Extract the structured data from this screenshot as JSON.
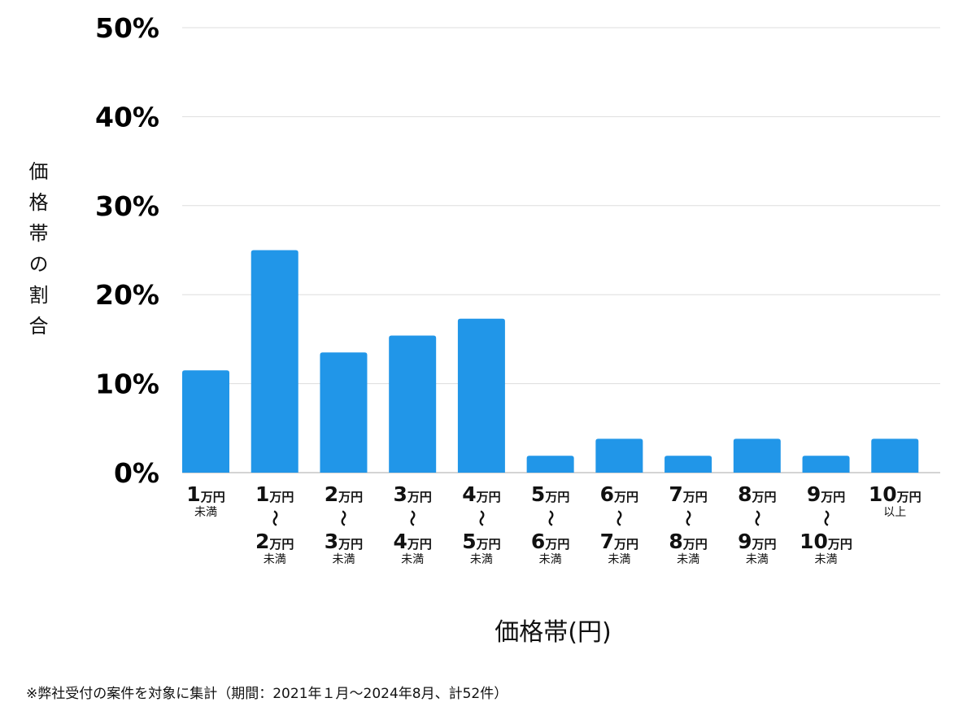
{
  "chart_data": {
    "type": "bar",
    "title": "",
    "xlabel": "価格帯(円)",
    "ylabel": "価格帯の割合",
    "ylim": [
      0,
      50
    ],
    "yticks": [
      "0%",
      "10%",
      "20%",
      "30%",
      "40%",
      "50%"
    ],
    "grid": true,
    "bar_color": "#2196E8",
    "categories": [
      "1万円未満",
      "1万円〜2万円未満",
      "2万円〜3万円未満",
      "3万円〜4万円未満",
      "4万円〜5万円未満",
      "5万円〜6万円未満",
      "6万円〜7万円未満",
      "7万円〜8万円未満",
      "8万円〜9万円未満",
      "9万円〜10万円未満",
      "10万円以上"
    ],
    "values": [
      11.5,
      25.0,
      13.5,
      15.4,
      17.3,
      1.9,
      3.8,
      1.9,
      3.8,
      1.9,
      3.8
    ],
    "labels": [
      {
        "from": "1",
        "unit": "万円",
        "tilde": "",
        "to": "",
        "to_unit": "",
        "suffix": "未満"
      },
      {
        "from": "1",
        "unit": "万円",
        "tilde": "〜",
        "to": "2",
        "to_unit": "万円",
        "suffix": "未満"
      },
      {
        "from": "2",
        "unit": "万円",
        "tilde": "〜",
        "to": "3",
        "to_unit": "万円",
        "suffix": "未満"
      },
      {
        "from": "3",
        "unit": "万円",
        "tilde": "〜",
        "to": "4",
        "to_unit": "万円",
        "suffix": "未満"
      },
      {
        "from": "4",
        "unit": "万円",
        "tilde": "〜",
        "to": "5",
        "to_unit": "万円",
        "suffix": "未満"
      },
      {
        "from": "5",
        "unit": "万円",
        "tilde": "〜",
        "to": "6",
        "to_unit": "万円",
        "suffix": "未満"
      },
      {
        "from": "6",
        "unit": "万円",
        "tilde": "〜",
        "to": "7",
        "to_unit": "万円",
        "suffix": "未満"
      },
      {
        "from": "7",
        "unit": "万円",
        "tilde": "〜",
        "to": "8",
        "to_unit": "万円",
        "suffix": "未満"
      },
      {
        "from": "8",
        "unit": "万円",
        "tilde": "〜",
        "to": "9",
        "to_unit": "万円",
        "suffix": "未満"
      },
      {
        "from": "9",
        "unit": "万円",
        "tilde": "〜",
        "to": "10",
        "to_unit": "万円",
        "suffix": "未満"
      },
      {
        "from": "10",
        "unit": "万円",
        "tilde": "",
        "to": "",
        "to_unit": "",
        "suffix": "以上"
      }
    ]
  },
  "footnote": "※弊社受付の案件を対象に集計（期間：2021年１月〜2024年8月、計52件）"
}
